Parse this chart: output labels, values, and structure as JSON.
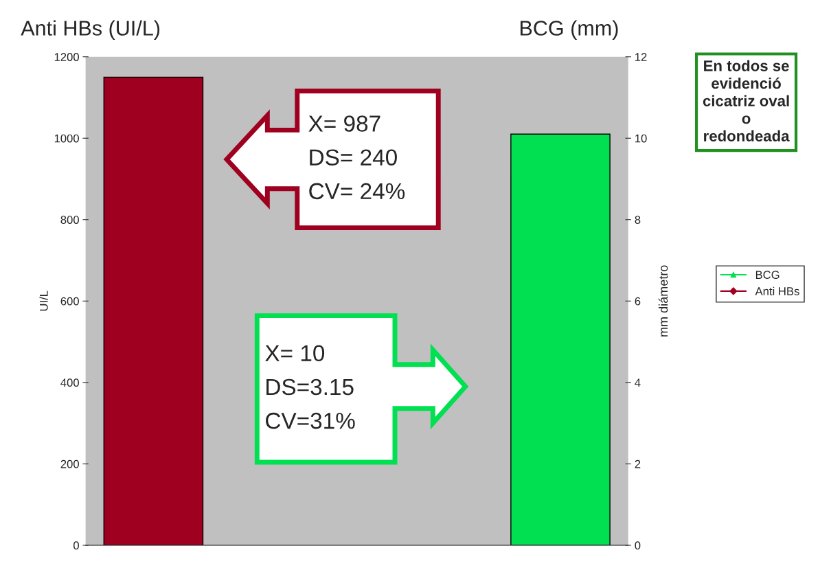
{
  "chart_data": {
    "type": "bar",
    "categories": [
      null,
      null,
      null,
      null
    ],
    "series": [
      {
        "name": "BCG",
        "color": "#00e050",
        "axis": "y2",
        "marker": "triangle",
        "values": [
          null,
          null,
          null,
          10.1
        ]
      },
      {
        "name": "Anti HBs",
        "color": "#a00020",
        "axis": "y",
        "marker": "diamond",
        "values": [
          1150,
          null,
          null,
          null
        ]
      }
    ],
    "ylabel": "UI/L",
    "y2label": "mm diámetro",
    "ylim": [
      0,
      1200
    ],
    "yticks": [
      0,
      200,
      400,
      600,
      800,
      1000,
      1200
    ],
    "y2lim": [
      0,
      12
    ],
    "y2ticks": [
      0,
      2,
      4,
      6,
      8,
      10,
      12
    ],
    "grid": false,
    "legend": "right",
    "annotations": [
      "Anti HBs (UI/L)",
      "BCG (mm)",
      "X= 987\nDS= 240\nCV= 24%",
      "X= 10\nDS=3.15\nCV=31%",
      "En todos se\nevidenció\ncicatriz oval\no\nredondeada"
    ]
  }
}
